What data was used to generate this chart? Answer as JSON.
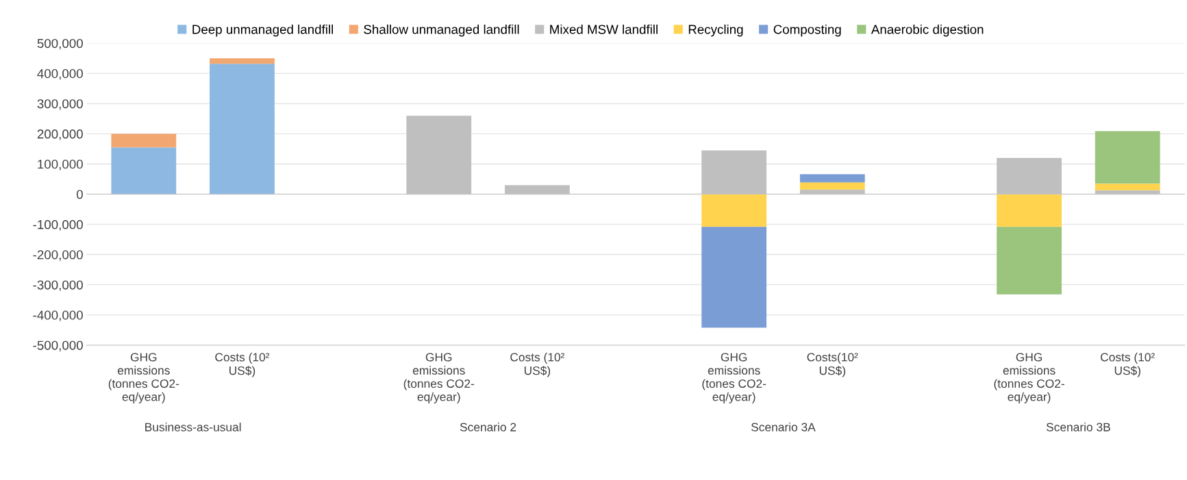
{
  "chart_data": {
    "type": "bar",
    "stacked": true,
    "categories": [
      "GHG\nemissions\n(tonnes CO2-\neq/year)",
      "Costs (10²\nUS$)",
      null,
      "GHG\nemissions\n(tonnes CO2-\neq/year)",
      "Costs (10²\nUS$)",
      null,
      "GHG\nemissions\n(tones CO2-\neq/year)",
      "Costs(10²\nUS$)",
      null,
      "GHG\nemissions\n(tonnes CO2-\neq/year)",
      "Costs (10²\nUS$)"
    ],
    "series": [
      {
        "name": "Deep unmanaged landfill",
        "color": "#8cb8e2",
        "values": [
          155000,
          432000,
          null,
          0,
          0,
          null,
          0,
          0,
          null,
          0,
          0
        ]
      },
      {
        "name": "Shallow unmanaged landfill",
        "color": "#f2a670",
        "values": [
          45000,
          18000,
          null,
          0,
          0,
          null,
          0,
          0,
          null,
          0,
          0
        ]
      },
      {
        "name": "Mixed MSW landfill",
        "color": "#bfbfbf",
        "values": [
          0,
          0,
          null,
          260000,
          30000,
          null,
          145000,
          15000,
          null,
          120000,
          13000
        ]
      },
      {
        "name": "Recycling",
        "color": "#ffd34d",
        "values": [
          0,
          0,
          null,
          0,
          0,
          null,
          -108000,
          24000,
          null,
          -108000,
          22000
        ]
      },
      {
        "name": "Composting",
        "color": "#7b9dd5",
        "values": [
          0,
          0,
          null,
          0,
          0,
          null,
          -334000,
          27000,
          null,
          0,
          0
        ]
      },
      {
        "name": "Anaerobic digestion",
        "color": "#9bc47c",
        "values": [
          0,
          0,
          null,
          0,
          0,
          null,
          0,
          0,
          null,
          -224000,
          174000
        ]
      }
    ],
    "ylim": [
      -500000,
      500000
    ],
    "yticks": [
      {
        "value": -500000,
        "label": "-500,000"
      },
      {
        "value": -400000,
        "label": "-400,000"
      },
      {
        "value": -300000,
        "label": "-300,000"
      },
      {
        "value": -200000,
        "label": "-200,000"
      },
      {
        "value": -100000,
        "label": "-100,000"
      },
      0,
      {
        "value": 100000,
        "label": "100,000"
      },
      {
        "value": 200000,
        "label": "200,000"
      },
      {
        "value": 300000,
        "label": "300,000"
      },
      {
        "value": 400000,
        "label": "400,000"
      },
      {
        "value": 500000,
        "label": "500,000"
      }
    ],
    "grid": "y",
    "legend": "top",
    "annotations": [
      "Business-as-usual",
      "Scenario 2",
      "Scenario 3A",
      "Scenario 3B"
    ]
  }
}
